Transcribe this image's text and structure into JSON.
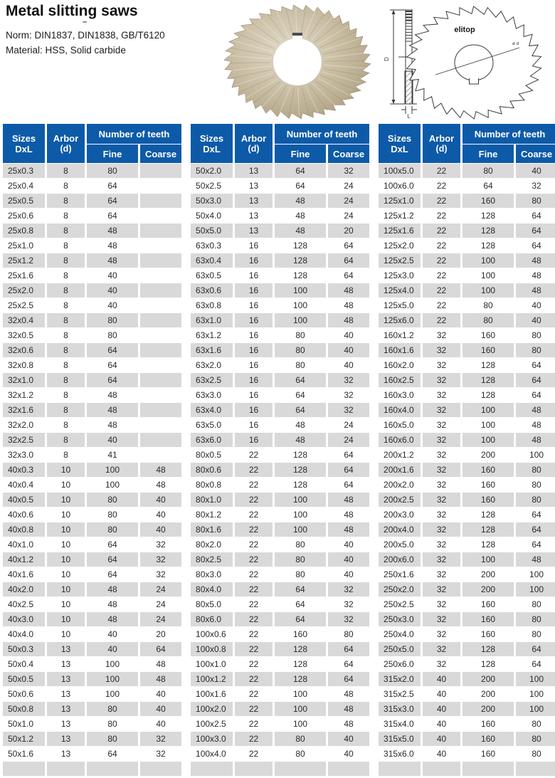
{
  "page": {
    "title": "Metal slitting saws",
    "title_dash": "–",
    "norm": "Norm: DIN1837, DIN1838, GB/T6120",
    "material": "Material: HSS, Solid carbide"
  },
  "diagram": {
    "brand": "elitop",
    "diameter_label": "D",
    "thickness_label": "L",
    "bore_label": "ø d"
  },
  "colors": {
    "header_bg": "#0d5aa8",
    "row_alt": "#d9d9d9",
    "row_base": "#ffffff",
    "blade_tan": "#c3b79d"
  },
  "table_header": {
    "sizes_line1": "Sizes",
    "sizes_line2": "DxL",
    "arbor_line1": "Arbor",
    "arbor_line2": "(d)",
    "teeth": "Number  of teeth",
    "fine": "Fine",
    "coarse": "Coarse"
  },
  "tables": [
    {
      "rows": [
        [
          "25x0.3",
          "8",
          "80",
          ""
        ],
        [
          "25x0.4",
          "8",
          "64",
          ""
        ],
        [
          "25x0.5",
          "8",
          "64",
          ""
        ],
        [
          "25x0.6",
          "8",
          "64",
          ""
        ],
        [
          "25x0.8",
          "8",
          "48",
          ""
        ],
        [
          "25x1.0",
          "8",
          "48",
          ""
        ],
        [
          "25x1.2",
          "8",
          "48",
          ""
        ],
        [
          "25x1.6",
          "8",
          "40",
          ""
        ],
        [
          "25x2.0",
          "8",
          "40",
          ""
        ],
        [
          "25x2.5",
          "8",
          "40",
          ""
        ],
        [
          "32x0.4",
          "8",
          "80",
          ""
        ],
        [
          "32x0.5",
          "8",
          "80",
          ""
        ],
        [
          "32x0.6",
          "8",
          "64",
          ""
        ],
        [
          "32x0.8",
          "8",
          "64",
          ""
        ],
        [
          "32x1.0",
          "8",
          "64",
          ""
        ],
        [
          "32x1.2",
          "8",
          "48",
          ""
        ],
        [
          "32x1.6",
          "8",
          "48",
          ""
        ],
        [
          "32x2.0",
          "8",
          "48",
          ""
        ],
        [
          "32x2.5",
          "8",
          "40",
          ""
        ],
        [
          "32x3.0",
          "8",
          "41",
          ""
        ],
        [
          "40x0.3",
          "10",
          "100",
          "48"
        ],
        [
          "40x0.4",
          "10",
          "100",
          "48"
        ],
        [
          "40x0.5",
          "10",
          "80",
          "40"
        ],
        [
          "40x0.6",
          "10",
          "80",
          "40"
        ],
        [
          "40x0.8",
          "10",
          "80",
          "40"
        ],
        [
          "40x1.0",
          "10",
          "64",
          "32"
        ],
        [
          "40x1.2",
          "10",
          "64",
          "32"
        ],
        [
          "40x1.6",
          "10",
          "64",
          "32"
        ],
        [
          "40x2.0",
          "10",
          "48",
          "24"
        ],
        [
          "40x2.5",
          "10",
          "48",
          "24"
        ],
        [
          "40x3.0",
          "10",
          "48",
          "24"
        ],
        [
          "40x4.0",
          "10",
          "40",
          "20"
        ],
        [
          "50x0.3",
          "13",
          "40",
          "64"
        ],
        [
          "50x0.4",
          "13",
          "100",
          "48"
        ],
        [
          "50x0.5",
          "13",
          "100",
          "48"
        ],
        [
          "50x0.6",
          "13",
          "100",
          "40"
        ],
        [
          "50x0.8",
          "13",
          "80",
          "40"
        ],
        [
          "50x1.0",
          "13",
          "80",
          "40"
        ],
        [
          "50x1.2",
          "13",
          "80",
          "32"
        ],
        [
          "50x1.6",
          "13",
          "64",
          "32"
        ],
        [
          "",
          "",
          "",
          ""
        ]
      ]
    },
    {
      "rows": [
        [
          "50x2.0",
          "13",
          "64",
          "32"
        ],
        [
          "50x2.5",
          "13",
          "64",
          "24"
        ],
        [
          "50x3.0",
          "13",
          "48",
          "24"
        ],
        [
          "50x4.0",
          "13",
          "48",
          "24"
        ],
        [
          "50x5.0",
          "13",
          "48",
          "20"
        ],
        [
          "63x0.3",
          "16",
          "128",
          "64"
        ],
        [
          "63x0.4",
          "16",
          "128",
          "64"
        ],
        [
          "63x0.5",
          "16",
          "128",
          "64"
        ],
        [
          "63x0.6",
          "16",
          "100",
          "48"
        ],
        [
          "63x0.8",
          "16",
          "100",
          "48"
        ],
        [
          "63x1.0",
          "16",
          "100",
          "48"
        ],
        [
          "63x1.2",
          "16",
          "80",
          "40"
        ],
        [
          "63x1.6",
          "16",
          "80",
          "40"
        ],
        [
          "63x2.0",
          "16",
          "80",
          "40"
        ],
        [
          "63x2.5",
          "16",
          "64",
          "32"
        ],
        [
          "63x3.0",
          "16",
          "64",
          "32"
        ],
        [
          "63x4.0",
          "16",
          "64",
          "32"
        ],
        [
          "63x5.0",
          "16",
          "48",
          "24"
        ],
        [
          "63x6.0",
          "16",
          "48",
          "24"
        ],
        [
          "80x0.5",
          "22",
          "128",
          "64"
        ],
        [
          "80x0.6",
          "22",
          "128",
          "64"
        ],
        [
          "80x0.8",
          "22",
          "128",
          "64"
        ],
        [
          "80x1.0",
          "22",
          "100",
          "48"
        ],
        [
          "80x1.2",
          "22",
          "100",
          "48"
        ],
        [
          "80x1.6",
          "22",
          "100",
          "48"
        ],
        [
          "80x2.0",
          "22",
          "80",
          "40"
        ],
        [
          "80x2.5",
          "22",
          "80",
          "40"
        ],
        [
          "80x3.0",
          "22",
          "80",
          "40"
        ],
        [
          "80x4.0",
          "22",
          "64",
          "32"
        ],
        [
          "80x5.0",
          "22",
          "64",
          "32"
        ],
        [
          "80x6.0",
          "22",
          "64",
          "32"
        ],
        [
          "100x0.6",
          "22",
          "160",
          "80"
        ],
        [
          "100x0.8",
          "22",
          "128",
          "64"
        ],
        [
          "100x1.0",
          "22",
          "128",
          "64"
        ],
        [
          "100x1.2",
          "22",
          "128",
          "64"
        ],
        [
          "100x1.6",
          "22",
          "100",
          "48"
        ],
        [
          "100x2.0",
          "22",
          "100",
          "48"
        ],
        [
          "100x2.5",
          "22",
          "100",
          "48"
        ],
        [
          "100x3.0",
          "22",
          "80",
          "40"
        ],
        [
          "100x4.0",
          "22",
          "80",
          "40"
        ],
        [
          "",
          "",
          "",
          ""
        ]
      ]
    },
    {
      "rows": [
        [
          "100x5.0",
          "22",
          "80",
          "40"
        ],
        [
          "100x6.0",
          "22",
          "64",
          "32"
        ],
        [
          "125x1.0",
          "22",
          "160",
          "80"
        ],
        [
          "125x1.2",
          "22",
          "128",
          "64"
        ],
        [
          "125x1.6",
          "22",
          "128",
          "64"
        ],
        [
          "125x2.0",
          "22",
          "128",
          "64"
        ],
        [
          "125x2.5",
          "22",
          "100",
          "48"
        ],
        [
          "125x3.0",
          "22",
          "100",
          "48"
        ],
        [
          "125x4.0",
          "22",
          "100",
          "48"
        ],
        [
          "125x5.0",
          "22",
          "80",
          "40"
        ],
        [
          "125x6.0",
          "22",
          "80",
          "40"
        ],
        [
          "160x1.2",
          "32",
          "160",
          "80"
        ],
        [
          "160x1.6",
          "32",
          "160",
          "80"
        ],
        [
          "160x2.0",
          "32",
          "128",
          "64"
        ],
        [
          "160x2.5",
          "32",
          "128",
          "64"
        ],
        [
          "160x3.0",
          "32",
          "128",
          "64"
        ],
        [
          "160x4.0",
          "32",
          "100",
          "48"
        ],
        [
          "160x5.0",
          "32",
          "100",
          "48"
        ],
        [
          "160x6.0",
          "32",
          "100",
          "48"
        ],
        [
          "200x1.2",
          "32",
          "200",
          "100"
        ],
        [
          "200x1.6",
          "32",
          "160",
          "80"
        ],
        [
          "200x2.0",
          "32",
          "160",
          "80"
        ],
        [
          "200x2.5",
          "32",
          "160",
          "80"
        ],
        [
          "200x3.0",
          "32",
          "128",
          "64"
        ],
        [
          "200x4.0",
          "32",
          "128",
          "64"
        ],
        [
          "200x5.0",
          "32",
          "128",
          "64"
        ],
        [
          "200x6.0",
          "32",
          "100",
          "48"
        ],
        [
          "250x1.6",
          "32",
          "200",
          "100"
        ],
        [
          "250x2.0",
          "32",
          "200",
          "100"
        ],
        [
          "250x2.5",
          "32",
          "160",
          "80"
        ],
        [
          "250x3.0",
          "32",
          "160",
          "80"
        ],
        [
          "250x4.0",
          "32",
          "160",
          "80"
        ],
        [
          "250x5.0",
          "32",
          "128",
          "64"
        ],
        [
          "250x6.0",
          "32",
          "128",
          "64"
        ],
        [
          "315x2.0",
          "40",
          "200",
          "100"
        ],
        [
          "315x2.5",
          "40",
          "200",
          "100"
        ],
        [
          "315x3.0",
          "40",
          "200",
          "100"
        ],
        [
          "315x4.0",
          "40",
          "160",
          "80"
        ],
        [
          "315x5.0",
          "40",
          "160",
          "80"
        ],
        [
          "315x6.0",
          "40",
          "160",
          "80"
        ],
        [
          "",
          "",
          "",
          ""
        ]
      ]
    }
  ]
}
